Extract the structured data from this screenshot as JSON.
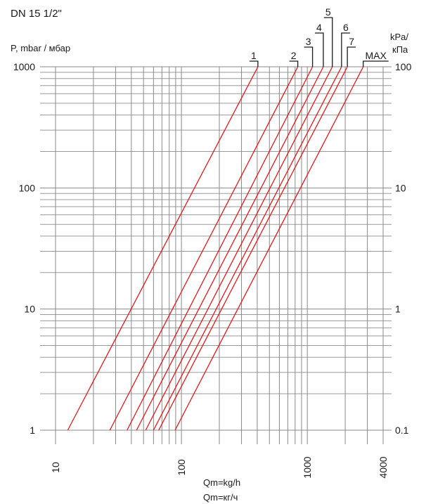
{
  "chart_data": {
    "type": "line",
    "title": "DN 15 1/2\"",
    "ylabel_left": "P, mbar / мбар",
    "ylabel_right_1": "kPa/",
    "ylabel_right_2": "кПа",
    "xlabel_1": "Qm=kg/h",
    "xlabel_2": "Qm=кг/ч",
    "x_scale": "log",
    "y_scale": "log",
    "xlim": [
      10,
      4000
    ],
    "ylim": [
      1,
      1000
    ],
    "grid": true,
    "x_ticks": [
      {
        "value": 10,
        "label": "10"
      },
      {
        "value": 100,
        "label": "100"
      },
      {
        "value": 1000,
        "label": "1000"
      },
      {
        "value": 4000,
        "label": "4000"
      }
    ],
    "y_ticks_left": [
      {
        "value": 1000,
        "label": "1000"
      },
      {
        "value": 100,
        "label": "100"
      },
      {
        "value": 10,
        "label": "10"
      },
      {
        "value": 1,
        "label": "1"
      }
    ],
    "y_ticks_right": [
      {
        "value": 1000,
        "label": "100"
      },
      {
        "value": 100,
        "label": "10"
      },
      {
        "value": 10,
        "label": "1"
      },
      {
        "value": 1,
        "label": "0.1"
      }
    ],
    "series_color": "#e0191b",
    "series": [
      {
        "name": "1",
        "x": [
          12.5,
          405
        ],
        "y": [
          1,
          1000
        ]
      },
      {
        "name": "2",
        "x": [
          27,
          840
        ],
        "y": [
          1,
          1000
        ]
      },
      {
        "name": "3",
        "x": [
          37,
          1100
        ],
        "y": [
          1,
          1000
        ]
      },
      {
        "name": "4",
        "x": [
          44,
          1340
        ],
        "y": [
          1,
          1000
        ]
      },
      {
        "name": "5",
        "x": [
          52,
          1580
        ],
        "y": [
          1,
          1000
        ]
      },
      {
        "name": "6",
        "x": [
          60,
          1870
        ],
        "y": [
          1,
          1000
        ]
      },
      {
        "name": "7",
        "x": [
          66,
          2080
        ],
        "y": [
          1,
          1000
        ]
      },
      {
        "name": "MAX",
        "x": [
          89,
          2780
        ],
        "y": [
          1,
          1000
        ]
      }
    ]
  }
}
